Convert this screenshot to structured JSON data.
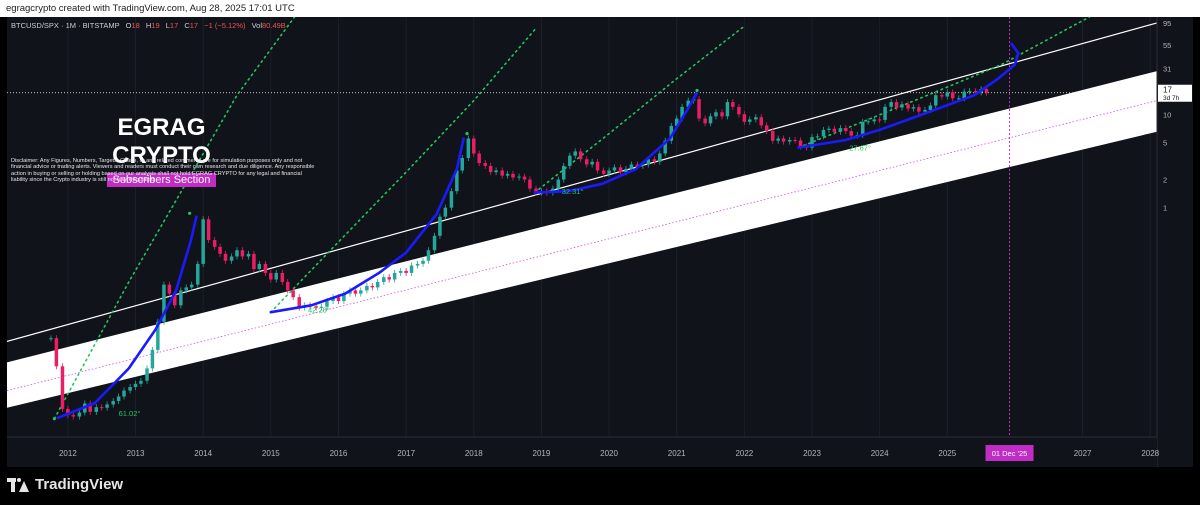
{
  "header": {
    "attribution": "egragcrypto created with TradingView.com, Aug 28, 2025 17:01 UTC"
  },
  "legend": {
    "symbol": "BTCUSD/SPX · 1M · BITSTAMP",
    "o_label": "O",
    "o_value": "18",
    "h_label": "H",
    "h_value": "19",
    "l_label": "L",
    "l_value": "17",
    "c_label": "C",
    "c_value": "17",
    "change": "−1 (−5.12%)",
    "vol_label": "Vol",
    "vol_value": "80.49B"
  },
  "branding": {
    "title": "EGRAG CRYPTO",
    "subtitle": "Subscribers Section"
  },
  "disclaimer": "Disclaimer: Any Figures, Numbers, Targets, Charts, or any related comments are for simulation purposes only and not financial advice or trading alerts. Viewers and readers must conduct their own research and due diligence. Any responsible action in buying or selling or holding based on our analysis shall not hold EGRAG CRYPTO for any legal and financial liability since the Crypto industry is still not fully Regulated.",
  "footer": {
    "brand": "TradingView"
  },
  "colors": {
    "background": "#11131a",
    "bull": "#26a69a",
    "bear": "#e91e63",
    "arc": "#1a1aff",
    "dotted": "#22c55e",
    "highlight": "#c22cc6"
  },
  "chart_data": {
    "type": "candlestick",
    "title": "",
    "symbol": "BTCUSD/SPX",
    "interval": "1M",
    "y_scale": "log",
    "y_ticks": [
      1,
      2,
      5,
      10,
      31,
      55,
      95
    ],
    "y_tick_labels": [
      "1",
      "2",
      "5",
      "10",
      "31",
      "55",
      "95"
    ],
    "x_ticks": [
      2012,
      2013,
      2014,
      2015,
      2016,
      2017,
      2018,
      2019,
      2020,
      2021,
      2022,
      2023,
      2024,
      2025,
      2027,
      2028
    ],
    "x_tick_labels": [
      "2012",
      "2013",
      "2014",
      "2015",
      "2016",
      "2017",
      "2018",
      "2019",
      "2020",
      "2021",
      "2022",
      "2023",
      "2024",
      "2025",
      "2027",
      "2028"
    ],
    "xlim": [
      2011.1,
      2028.1
    ],
    "ylim": [
      0.0035,
      110
    ],
    "last_price": {
      "value": 17,
      "label": "17",
      "countdown": "3d 7h"
    },
    "highlight_date": {
      "x": 2025.92,
      "label": "01 Dec '25"
    },
    "channel_band": {
      "upper": [
        [
          2011.1,
          0.022
        ],
        [
          2028.1,
          29
        ]
      ],
      "lower": [
        [
          2011.1,
          0.0072
        ],
        [
          2028.1,
          6.5
        ]
      ]
    },
    "resistance_line": [
      [
        2011.1,
        0.037
      ],
      [
        2028.1,
        95
      ]
    ],
    "median_line": [
      [
        2011.1,
        0.011
      ],
      [
        2028.1,
        14
      ]
    ],
    "horizontal_level": 17,
    "anchor_points": [
      [
        2011.8,
        0.0055
      ],
      [
        2013.8,
        0.87
      ],
      [
        2017.9,
        6.2
      ],
      [
        2021.3,
        18
      ]
    ],
    "arcs": [
      {
        "label": "61.02°",
        "label_x": 2012.75,
        "label_y": 0.0059,
        "points": [
          [
            2011.85,
            0.0056
          ],
          [
            2012.4,
            0.0081
          ],
          [
            2012.9,
            0.019
          ],
          [
            2013.3,
            0.05
          ],
          [
            2013.6,
            0.13
          ],
          [
            2013.82,
            0.45
          ],
          [
            2013.9,
            0.8
          ]
        ]
      },
      {
        "label": "42.28°",
        "label_x": 2015.55,
        "label_y": 0.075,
        "points": [
          [
            2015.0,
            0.076
          ],
          [
            2015.6,
            0.09
          ],
          [
            2016.1,
            0.12
          ],
          [
            2016.6,
            0.2
          ],
          [
            2017.0,
            0.33
          ],
          [
            2017.45,
            0.85
          ],
          [
            2017.75,
            2.6
          ],
          [
            2017.85,
            5.5
          ]
        ]
      },
      {
        "label": "32.31°",
        "label_x": 2019.3,
        "label_y": 1.4,
        "points": [
          [
            2018.9,
            1.45
          ],
          [
            2019.4,
            1.5
          ],
          [
            2019.9,
            1.8
          ],
          [
            2020.4,
            2.6
          ],
          [
            2020.9,
            5.5
          ],
          [
            2021.15,
            11
          ],
          [
            2021.3,
            17
          ]
        ]
      },
      {
        "label": "27.67°",
        "label_x": 2023.55,
        "label_y": 4.1,
        "points": [
          [
            2022.8,
            4.4
          ],
          [
            2023.5,
            5.3
          ],
          [
            2024.0,
            6.8
          ],
          [
            2024.5,
            9.2
          ],
          [
            2025.0,
            12.5
          ],
          [
            2025.4,
            16
          ],
          [
            2025.75,
            24
          ],
          [
            2026.0,
            34
          ],
          [
            2026.05,
            45
          ],
          [
            2025.95,
            57
          ]
        ]
      }
    ],
    "dotted_lines": [
      [
        [
          2011.8,
          0.0055
        ],
        [
          2012.9,
          0.16
        ],
        [
          2013.7,
          1.6
        ],
        [
          2014.5,
          16
        ],
        [
          2015.35,
          110
        ]
      ],
      [
        [
          2015.0,
          0.076
        ],
        [
          2016.0,
          0.43
        ],
        [
          2017.0,
          2.4
        ],
        [
          2018.0,
          14
        ],
        [
          2018.9,
          80
        ]
      ],
      [
        [
          2018.9,
          1.45
        ],
        [
          2020.0,
          6.2
        ],
        [
          2021.0,
          24
        ],
        [
          2022.0,
          88
        ]
      ],
      [
        [
          2022.8,
          4.4
        ],
        [
          2023.8,
          8.6
        ],
        [
          2024.8,
          17
        ],
        [
          2025.8,
          34
        ],
        [
          2026.6,
          70
        ],
        [
          2027.1,
          110
        ]
      ]
    ],
    "candles": [
      [
        2011.75,
        0.04,
        0.04
      ],
      [
        2011.83,
        0.04,
        0.02
      ],
      [
        2011.92,
        0.02,
        0.007
      ],
      [
        2012.0,
        0.007,
        0.006
      ],
      [
        2012.08,
        0.006,
        0.0058
      ],
      [
        2012.17,
        0.0058,
        0.0064
      ],
      [
        2012.25,
        0.0064,
        0.008
      ],
      [
        2012.33,
        0.008,
        0.0065
      ],
      [
        2012.42,
        0.0065,
        0.0073
      ],
      [
        2012.5,
        0.0073,
        0.0072
      ],
      [
        2012.58,
        0.0072,
        0.0078
      ],
      [
        2012.67,
        0.0078,
        0.0085
      ],
      [
        2012.75,
        0.0085,
        0.0095
      ],
      [
        2012.83,
        0.0095,
        0.011
      ],
      [
        2012.92,
        0.011,
        0.012
      ],
      [
        2013.0,
        0.012,
        0.013
      ],
      [
        2013.08,
        0.013,
        0.014
      ],
      [
        2013.17,
        0.014,
        0.019
      ],
      [
        2013.25,
        0.019,
        0.03
      ],
      [
        2013.33,
        0.03,
        0.06
      ],
      [
        2013.42,
        0.06,
        0.15
      ],
      [
        2013.5,
        0.15,
        0.12
      ],
      [
        2013.58,
        0.12,
        0.09
      ],
      [
        2013.67,
        0.09,
        0.13
      ],
      [
        2013.75,
        0.13,
        0.14
      ],
      [
        2013.83,
        0.14,
        0.15
      ],
      [
        2013.92,
        0.15,
        0.25
      ],
      [
        2014.0,
        0.25,
        0.75
      ],
      [
        2014.08,
        0.75,
        0.45
      ],
      [
        2014.17,
        0.45,
        0.38
      ],
      [
        2014.25,
        0.38,
        0.32
      ],
      [
        2014.33,
        0.32,
        0.27
      ],
      [
        2014.42,
        0.27,
        0.3
      ],
      [
        2014.5,
        0.3,
        0.35
      ],
      [
        2014.58,
        0.35,
        0.3
      ],
      [
        2014.67,
        0.3,
        0.32
      ],
      [
        2014.75,
        0.32,
        0.22
      ],
      [
        2014.83,
        0.22,
        0.25
      ],
      [
        2014.92,
        0.25,
        0.2
      ],
      [
        2015.0,
        0.2,
        0.17
      ],
      [
        2015.08,
        0.17,
        0.2
      ],
      [
        2015.17,
        0.2,
        0.16
      ],
      [
        2015.25,
        0.16,
        0.13
      ],
      [
        2015.33,
        0.13,
        0.11
      ],
      [
        2015.42,
        0.11,
        0.085
      ],
      [
        2015.5,
        0.085,
        0.09
      ],
      [
        2015.58,
        0.09,
        0.088
      ],
      [
        2015.67,
        0.088,
        0.085
      ],
      [
        2015.75,
        0.085,
        0.087
      ],
      [
        2015.83,
        0.087,
        0.1
      ],
      [
        2015.92,
        0.1,
        0.11
      ],
      [
        2016.0,
        0.11,
        0.1
      ],
      [
        2016.08,
        0.1,
        0.12
      ],
      [
        2016.17,
        0.12,
        0.13
      ],
      [
        2016.25,
        0.13,
        0.12
      ],
      [
        2016.33,
        0.12,
        0.13
      ],
      [
        2016.42,
        0.13,
        0.145
      ],
      [
        2016.5,
        0.145,
        0.14
      ],
      [
        2016.58,
        0.14,
        0.16
      ],
      [
        2016.67,
        0.16,
        0.18
      ],
      [
        2016.75,
        0.18,
        0.17
      ],
      [
        2016.83,
        0.17,
        0.2
      ],
      [
        2016.92,
        0.2,
        0.21
      ],
      [
        2017.0,
        0.21,
        0.2
      ],
      [
        2017.08,
        0.2,
        0.24
      ],
      [
        2017.17,
        0.24,
        0.25
      ],
      [
        2017.25,
        0.25,
        0.27
      ],
      [
        2017.33,
        0.27,
        0.35
      ],
      [
        2017.42,
        0.35,
        0.5
      ],
      [
        2017.5,
        0.5,
        0.8
      ],
      [
        2017.58,
        0.8,
        1.0
      ],
      [
        2017.67,
        1.0,
        1.5
      ],
      [
        2017.75,
        1.5,
        2.5
      ],
      [
        2017.83,
        2.5,
        3.4
      ],
      [
        2017.92,
        3.4,
        5.5
      ],
      [
        2018.0,
        5.5,
        3.8
      ],
      [
        2018.08,
        3.8,
        3.0
      ],
      [
        2018.17,
        3.0,
        2.8
      ],
      [
        2018.25,
        2.8,
        2.4
      ],
      [
        2018.33,
        2.4,
        2.5
      ],
      [
        2018.42,
        2.5,
        2.2
      ],
      [
        2018.5,
        2.2,
        2.3
      ],
      [
        2018.58,
        2.3,
        2.1
      ],
      [
        2018.67,
        2.1,
        2.15
      ],
      [
        2018.75,
        2.15,
        2.0
      ],
      [
        2018.83,
        2.0,
        1.6
      ],
      [
        2018.92,
        1.6,
        1.45
      ],
      [
        2019.0,
        1.45,
        1.5
      ],
      [
        2019.08,
        1.5,
        1.45
      ],
      [
        2019.17,
        1.45,
        1.6
      ],
      [
        2019.25,
        1.6,
        2.0
      ],
      [
        2019.33,
        2.0,
        2.8
      ],
      [
        2019.42,
        2.8,
        3.6
      ],
      [
        2019.5,
        3.6,
        4.0
      ],
      [
        2019.58,
        4.0,
        3.3
      ],
      [
        2019.67,
        3.3,
        2.9
      ],
      [
        2019.75,
        2.9,
        3.1
      ],
      [
        2019.83,
        3.1,
        2.5
      ],
      [
        2019.92,
        2.5,
        2.3
      ],
      [
        2020.0,
        2.3,
        2.5
      ],
      [
        2020.08,
        2.5,
        2.7
      ],
      [
        2020.17,
        2.7,
        2.4
      ],
      [
        2020.25,
        2.4,
        2.6
      ],
      [
        2020.33,
        2.6,
        2.9
      ],
      [
        2020.42,
        2.9,
        2.8
      ],
      [
        2020.5,
        2.8,
        2.9
      ],
      [
        2020.58,
        2.9,
        3.3
      ],
      [
        2020.67,
        3.3,
        3.1
      ],
      [
        2020.75,
        3.1,
        3.8
      ],
      [
        2020.83,
        3.8,
        5.2
      ],
      [
        2020.92,
        5.2,
        7.5
      ],
      [
        2021.0,
        7.5,
        9.0
      ],
      [
        2021.08,
        9.0,
        12
      ],
      [
        2021.17,
        12,
        14
      ],
      [
        2021.25,
        14,
        14.5
      ],
      [
        2021.33,
        14.5,
        9.0
      ],
      [
        2021.42,
        9.0,
        8.0
      ],
      [
        2021.5,
        8.0,
        9.5
      ],
      [
        2021.58,
        9.5,
        10.5
      ],
      [
        2021.67,
        10.5,
        9.5
      ],
      [
        2021.75,
        9.5,
        13.5
      ],
      [
        2021.83,
        13.5,
        12
      ],
      [
        2021.92,
        12,
        10
      ],
      [
        2022.0,
        10,
        8.3
      ],
      [
        2022.08,
        8.3,
        8.8
      ],
      [
        2022.17,
        8.8,
        9.3
      ],
      [
        2022.25,
        9.3,
        7.6
      ],
      [
        2022.33,
        7.6,
        6.6
      ],
      [
        2022.42,
        6.6,
        5.2
      ],
      [
        2022.5,
        5.2,
        5.5
      ],
      [
        2022.58,
        5.5,
        5.1
      ],
      [
        2022.67,
        5.1,
        5.3
      ],
      [
        2022.75,
        5.3,
        5.25
      ],
      [
        2022.83,
        5.25,
        4.5
      ],
      [
        2022.92,
        4.5,
        4.4
      ],
      [
        2023.0,
        4.4,
        5.7
      ],
      [
        2023.08,
        5.7,
        5.8
      ],
      [
        2023.17,
        5.8,
        6.8
      ],
      [
        2023.25,
        6.8,
        7.0
      ],
      [
        2023.33,
        7.0,
        6.5
      ],
      [
        2023.42,
        6.5,
        7.1
      ],
      [
        2023.5,
        7.1,
        6.6
      ],
      [
        2023.58,
        6.6,
        5.9
      ],
      [
        2023.67,
        5.9,
        6.0
      ],
      [
        2023.75,
        6.0,
        8.3
      ],
      [
        2023.83,
        8.3,
        8.4
      ],
      [
        2023.92,
        8.4,
        8.8
      ],
      [
        2024.0,
        8.8,
        8.7
      ],
      [
        2024.08,
        8.7,
        12
      ],
      [
        2024.17,
        12,
        13.5
      ],
      [
        2024.25,
        13.5,
        11.8
      ],
      [
        2024.33,
        11.8,
        12.8
      ],
      [
        2024.42,
        12.8,
        11.5
      ],
      [
        2024.5,
        11.5,
        11.9
      ],
      [
        2024.58,
        11.9,
        10.7
      ],
      [
        2024.67,
        10.7,
        11.1
      ],
      [
        2024.75,
        11.1,
        12.4
      ],
      [
        2024.83,
        12.4,
        16
      ],
      [
        2024.92,
        16,
        15.5
      ],
      [
        2025.0,
        15.5,
        17.2
      ],
      [
        2025.08,
        17.2,
        14.8
      ],
      [
        2025.17,
        14.8,
        14.8
      ],
      [
        2025.25,
        14.8,
        17.5
      ],
      [
        2025.33,
        17.5,
        17.7
      ],
      [
        2025.42,
        17.7,
        17.1
      ],
      [
        2025.5,
        17.1,
        18.6
      ],
      [
        2025.58,
        18.6,
        17.0
      ]
    ]
  }
}
